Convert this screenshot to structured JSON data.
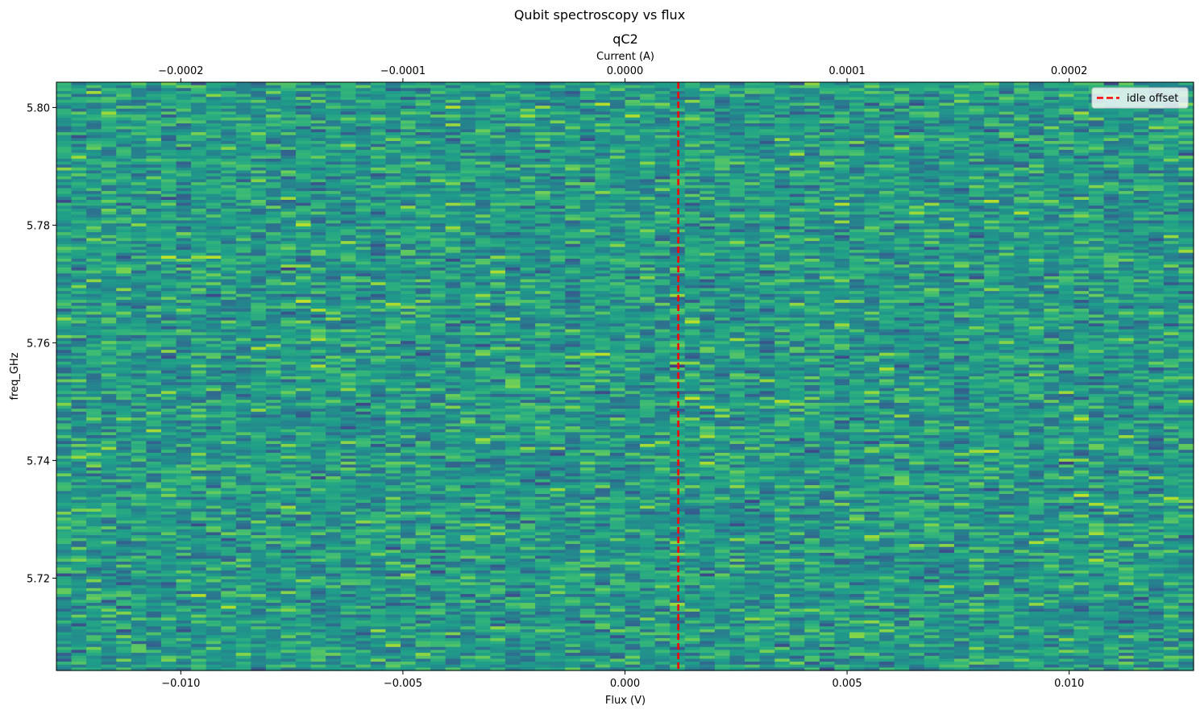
{
  "chart_data": {
    "type": "heatmap",
    "suptitle": "Qubit spectroscopy vs flux",
    "title": "qC2",
    "xlabel": "Flux (V)",
    "ylabel": "freq_GHz",
    "secondary_xlabel": "Current (A)",
    "xlim": [
      -0.0128,
      0.0128
    ],
    "ylim": [
      5.7043,
      5.8043
    ],
    "secondary_xlim": [
      -0.000256,
      0.000256
    ],
    "x_ticks": [
      {
        "value": -0.01,
        "label": "−0.010"
      },
      {
        "value": -0.005,
        "label": "−0.005"
      },
      {
        "value": 0.0,
        "label": "0.000"
      },
      {
        "value": 0.005,
        "label": "0.005"
      },
      {
        "value": 0.01,
        "label": "0.010"
      }
    ],
    "y_ticks": [
      {
        "value": 5.72,
        "label": "5.72"
      },
      {
        "value": 5.74,
        "label": "5.74"
      },
      {
        "value": 5.76,
        "label": "5.76"
      },
      {
        "value": 5.78,
        "label": "5.78"
      },
      {
        "value": 5.8,
        "label": "5.80"
      }
    ],
    "secondary_x_ticks": [
      {
        "value": -0.0002,
        "label": "−0.0002"
      },
      {
        "value": -0.0001,
        "label": "−0.0001"
      },
      {
        "value": 0.0,
        "label": "0.0000"
      },
      {
        "value": 0.0001,
        "label": "0.0001"
      },
      {
        "value": 0.0002,
        "label": "0.0002"
      }
    ],
    "n_flux_points": 76,
    "n_freq_points": 200,
    "colormap": "viridis",
    "vline": {
      "x": 0.0012,
      "label": "idle offset",
      "color": "#ff0000",
      "style": "dashed"
    },
    "legend": {
      "position": "top-right",
      "entries": [
        "idle offset"
      ]
    }
  }
}
